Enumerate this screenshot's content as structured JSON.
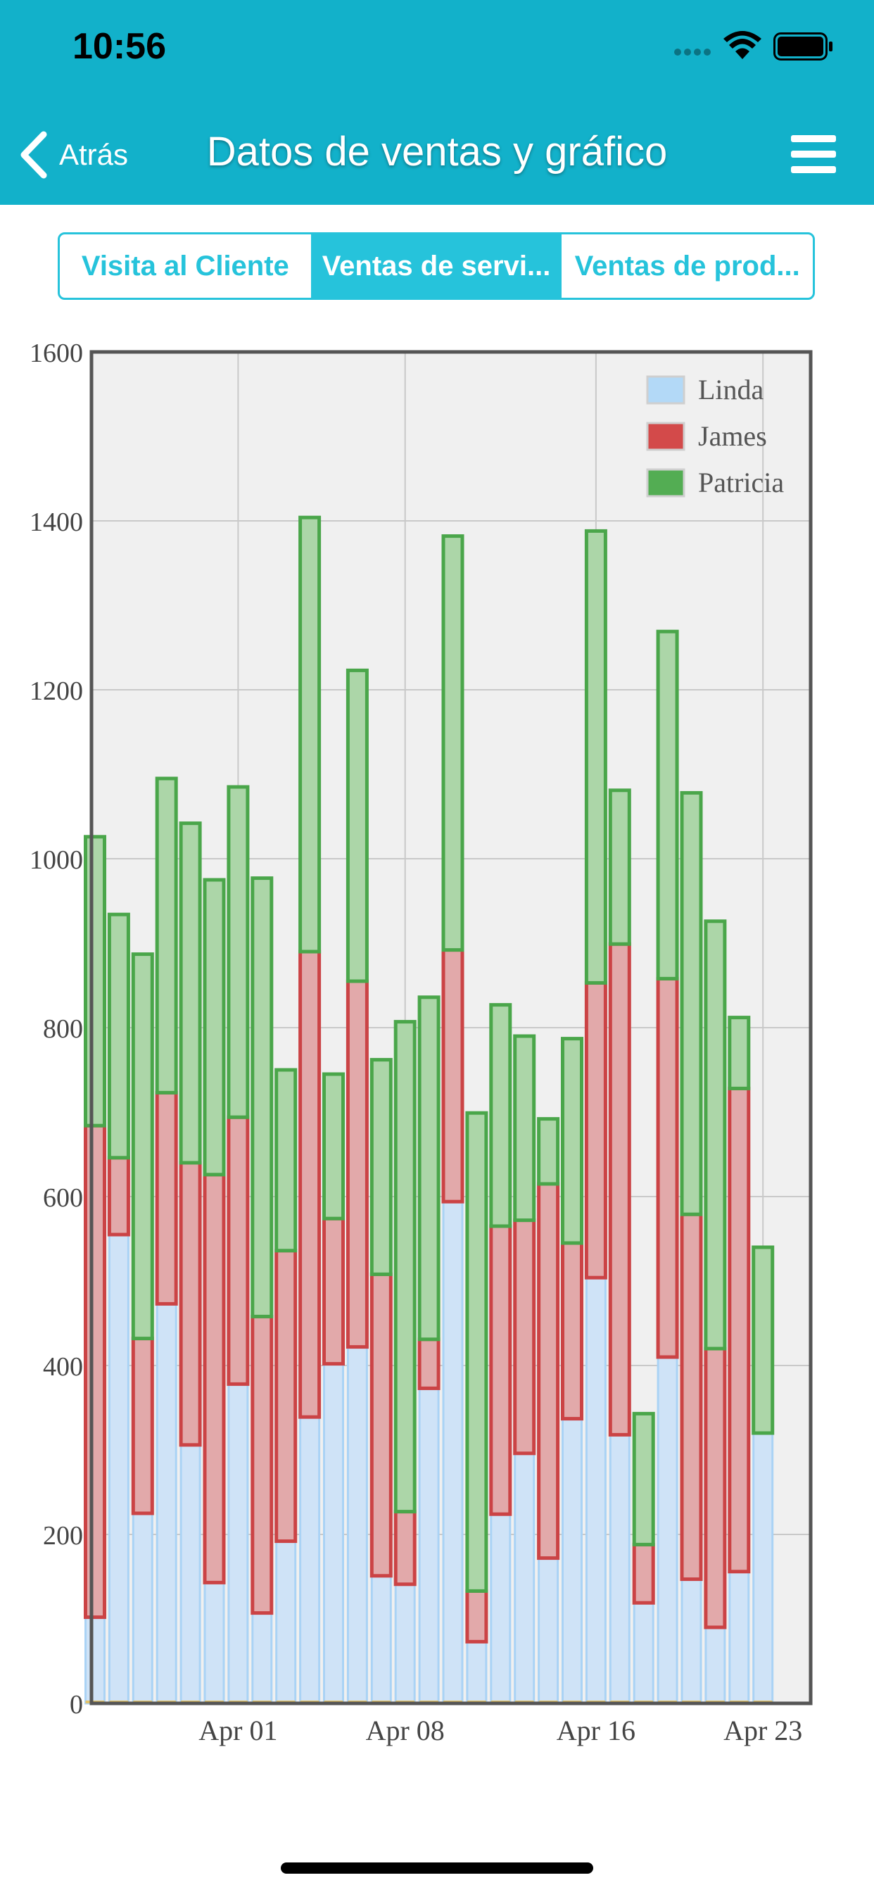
{
  "status": {
    "time": "10:56"
  },
  "nav": {
    "back_label": "Atrás",
    "title": "Datos de ventas y gráfico"
  },
  "tabs": [
    {
      "label": "Visita al Cliente",
      "active": false
    },
    {
      "label": "Ventas de servi...",
      "active": true
    },
    {
      "label": "Ventas de prod...",
      "active": false
    }
  ],
  "colors": {
    "header": "#12b1ca",
    "tab_accent": "#26c3db",
    "linda_fill": "#cfe3f7",
    "linda_stroke": "#aad3f5",
    "james_fill": "#e2a9aa",
    "james_stroke": "#cb4345",
    "patricia_fill": "#acd6a8",
    "patricia_stroke": "#4aa64a"
  },
  "chart_data": {
    "type": "bar",
    "stacked": true,
    "x": [
      "Mar 26",
      "Mar 27",
      "Mar 28",
      "Mar 29",
      "Mar 30",
      "Mar 31",
      "Apr 01",
      "Apr 02",
      "Apr 03",
      "Apr 04",
      "Apr 05",
      "Apr 06",
      "Apr 07",
      "Apr 08",
      "Apr 09",
      "Apr 10",
      "Apr 11",
      "Apr 12",
      "Apr 13",
      "Apr 14",
      "Apr 15",
      "Apr 16",
      "Apr 17",
      "Apr 18",
      "Apr 19",
      "Apr 20",
      "Apr 21",
      "Apr 22",
      "Apr 23"
    ],
    "x_tick_labels": [
      "Apr 01",
      "Apr 08",
      "Apr 16",
      "Apr 23"
    ],
    "series": [
      {
        "name": "Linda",
        "values": [
          102,
          555,
          225,
          473,
          306,
          143,
          378,
          107,
          192,
          339,
          402,
          422,
          151,
          141,
          373,
          594,
          73,
          224,
          296,
          172,
          337,
          504,
          318,
          119,
          410,
          147,
          90,
          156,
          320
        ]
      },
      {
        "name": "James",
        "values": [
          582,
          91,
          207,
          250,
          334,
          483,
          316,
          351,
          344,
          551,
          172,
          433,
          357,
          86,
          58,
          298,
          60,
          341,
          276,
          443,
          208,
          349,
          581,
          69,
          448,
          432,
          330,
          572,
          0
        ]
      },
      {
        "name": "Patricia",
        "values": [
          342,
          288,
          455,
          372,
          402,
          349,
          391,
          519,
          214,
          514,
          171,
          368,
          254,
          580,
          405,
          490,
          566,
          262,
          218,
          77,
          242,
          535,
          182,
          155,
          411,
          499,
          506,
          84,
          220
        ]
      }
    ],
    "ylim": [
      0,
      1600
    ],
    "y_ticks": [
      0,
      200,
      400,
      600,
      800,
      1000,
      1200,
      1400,
      1600
    ],
    "legend_position": "top-right",
    "grid": true
  }
}
